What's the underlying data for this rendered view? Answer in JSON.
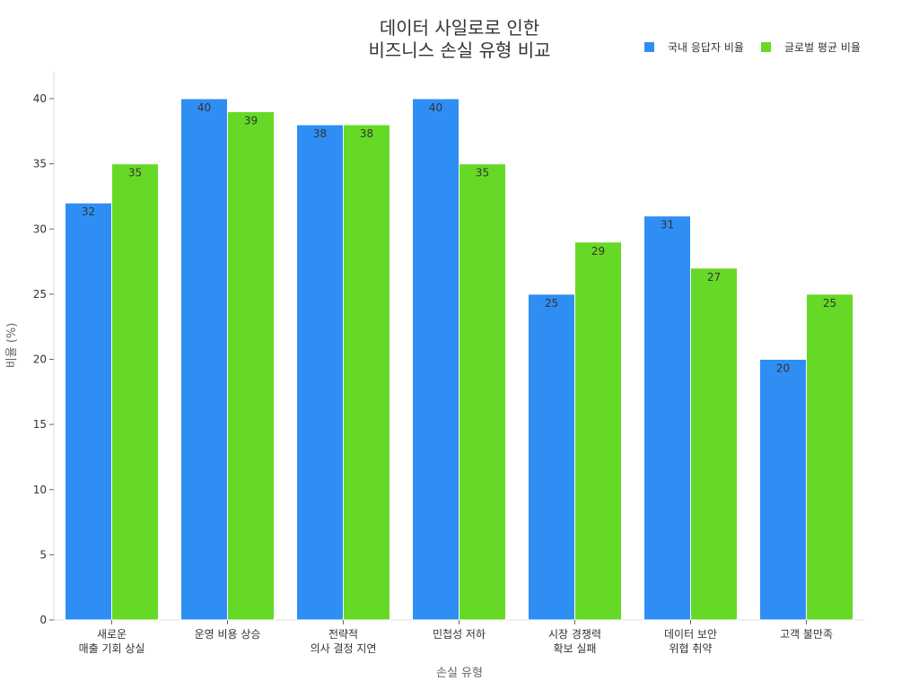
{
  "chart_data": {
    "type": "bar",
    "title_lines": [
      "데이터 사일로로 인한",
      "비즈니스 손실 유형 비교"
    ],
    "xlabel": "손실 유형",
    "ylabel": "비율 (%)",
    "ylim": [
      0,
      40
    ],
    "yticks": [
      0,
      5,
      10,
      15,
      20,
      25,
      30,
      35,
      40
    ],
    "legend_position": "top-right",
    "categories": [
      [
        "새로운",
        "매출 기회 상실"
      ],
      [
        "운영 비용 상승"
      ],
      [
        "전략적",
        "의사 결정 지연"
      ],
      [
        "민첩성 저하"
      ],
      [
        "시장 경쟁력",
        "확보 실패"
      ],
      [
        "데이터 보안",
        "위협 취약"
      ],
      [
        "고객 불만족"
      ]
    ],
    "series": [
      {
        "name": "국내 응답자 비율",
        "color": "#2f8ef4",
        "values": [
          32,
          40,
          38,
          40,
          25,
          31,
          20
        ]
      },
      {
        "name": "글로벌 평균 비율",
        "color": "#66d926",
        "values": [
          35,
          39,
          38,
          35,
          29,
          27,
          25
        ]
      }
    ]
  }
}
